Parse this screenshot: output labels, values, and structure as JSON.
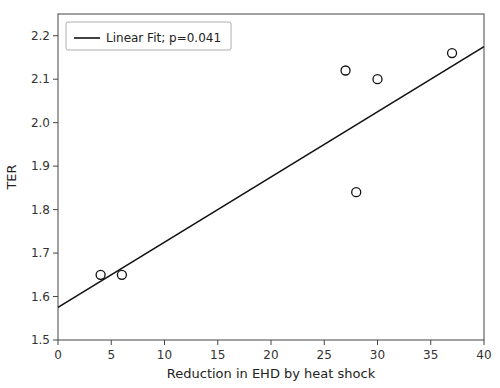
{
  "chart_data": {
    "type": "scatter",
    "xlabel": "Reduction in EHD by heat shock",
    "ylabel": "TER",
    "series": [
      {
        "name": "Linear Fit; p=0.041",
        "type": "line",
        "color": "#111111",
        "line_style": "solid",
        "x": [
          0,
          40
        ],
        "values": [
          1.575,
          2.175
        ]
      },
      {
        "type": "scatter",
        "color": "#111111",
        "marker": "open-circle",
        "x": [
          4,
          6,
          27,
          30,
          28,
          37
        ],
        "values": [
          1.65,
          1.65,
          2.12,
          2.1,
          1.84,
          2.16
        ]
      }
    ],
    "xlim": [
      0,
      40
    ],
    "ylim": [
      1.5,
      2.25
    ],
    "xticks": [
      0,
      5,
      10,
      15,
      20,
      25,
      30,
      35,
      40
    ],
    "yticks": [
      1.5,
      1.6,
      1.7,
      1.8,
      1.9,
      {
        "value": 2,
        "label": "2.0"
      },
      2.1,
      2.2
    ],
    "grid": false,
    "legend": "upper left"
  }
}
